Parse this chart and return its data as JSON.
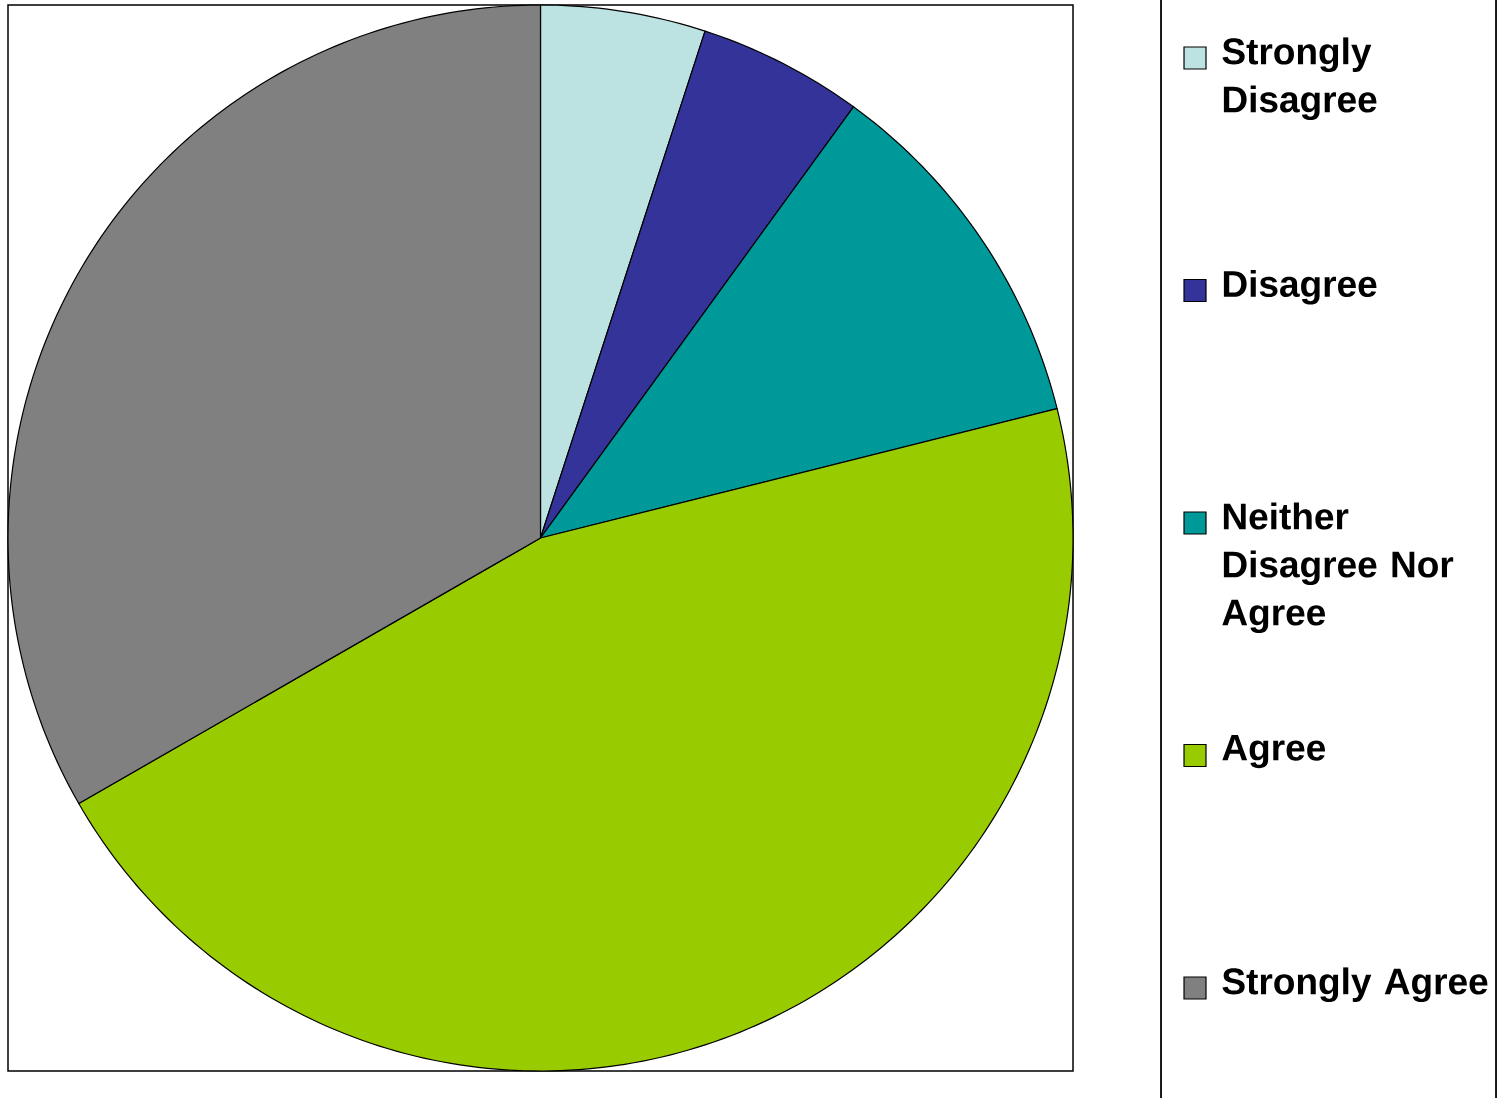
{
  "chart_data": {
    "type": "pie",
    "categories": [
      "Strongly Disagree",
      "Disagree",
      "Neither Disagree Nor Agree",
      "Agree",
      "Strongly Agree"
    ],
    "values": [
      5,
      5,
      11.1,
      45.6,
      33.3
    ],
    "colors": [
      "#bce2e2",
      "#333399",
      "#009999",
      "#99cc00",
      "#808080"
    ],
    "legend": "right"
  }
}
